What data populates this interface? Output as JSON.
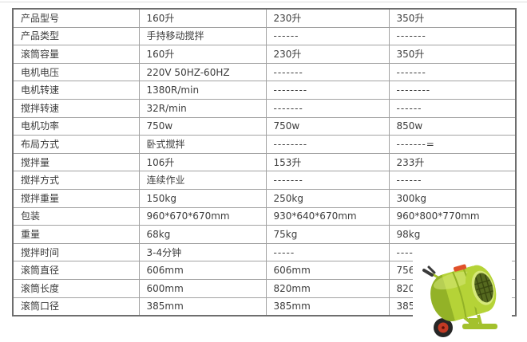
{
  "page": {
    "background": "#ffffff",
    "top_divider_color": "#dcdcdc"
  },
  "table": {
    "outer_border_color": "#6e6e6e",
    "inner_border_color": "#a2a2a2",
    "text_color": "#3c3c3c",
    "rows": [
      {
        "label": "产品型号",
        "values": [
          "160升",
          "230升",
          "350升"
        ]
      },
      {
        "label": "产品类型",
        "values": [
          "手持移动搅拌",
          "------",
          "-------"
        ]
      },
      {
        "label": "滚筒容量",
        "values": [
          "160升",
          "230升",
          "350升"
        ]
      },
      {
        "label": "电机电压",
        "values": [
          "220V 50HZ-60HZ",
          "-------",
          "-------"
        ]
      },
      {
        "label": "电机转速",
        "values": [
          "1380R/min",
          "--------",
          "--------"
        ]
      },
      {
        "label": "搅拌转速",
        "values": [
          "32R/min",
          "-------",
          "------"
        ]
      },
      {
        "label": "电机功率",
        "values": [
          "750w",
          "750w",
          "850w"
        ]
      },
      {
        "label": "布局方式",
        "values": [
          "卧式搅拌",
          "--------",
          "-------="
        ]
      },
      {
        "label": "搅拌量",
        "values": [
          "106升",
          "153升",
          "233升"
        ]
      },
      {
        "label": "搅拌方式",
        "values": [
          "连续作业",
          "-------",
          "------"
        ]
      },
      {
        "label": "搅拌重量",
        "values": [
          "150kg",
          "250kg",
          "300kg"
        ]
      },
      {
        "label": "包装",
        "values": [
          "960*670*670mm",
          "930*640*670mm",
          "960*800*770mm"
        ]
      },
      {
        "label": "重量",
        "values": [
          "68kg",
          "75kg",
          "98kg"
        ]
      },
      {
        "label": "搅拌时间",
        "values": [
          "3-4分钟",
          "-----",
          "-----"
        ]
      },
      {
        "label": "滚筒直径",
        "values": [
          "606mm",
          "606mm",
          "756mm"
        ]
      },
      {
        "label": "滚筒长度",
        "values": [
          "600mm",
          "820mm",
          "820mm"
        ]
      },
      {
        "label": "滚筒口径",
        "values": [
          "385mm",
          "385mm",
          "385mm"
        ]
      }
    ]
  },
  "product_image": {
    "description": "green portable concrete mixer",
    "drum_color": "#b5d337",
    "drum_shade_color": "#93b227",
    "drum_highlight_color": "#d6e87a",
    "opening_color": "#55691f",
    "mesh_color": "#39470f",
    "frame_color": "#a3c12d",
    "tire_color": "#262626",
    "hub_color": "#c23a24",
    "sticker_color": "#e0512b"
  }
}
